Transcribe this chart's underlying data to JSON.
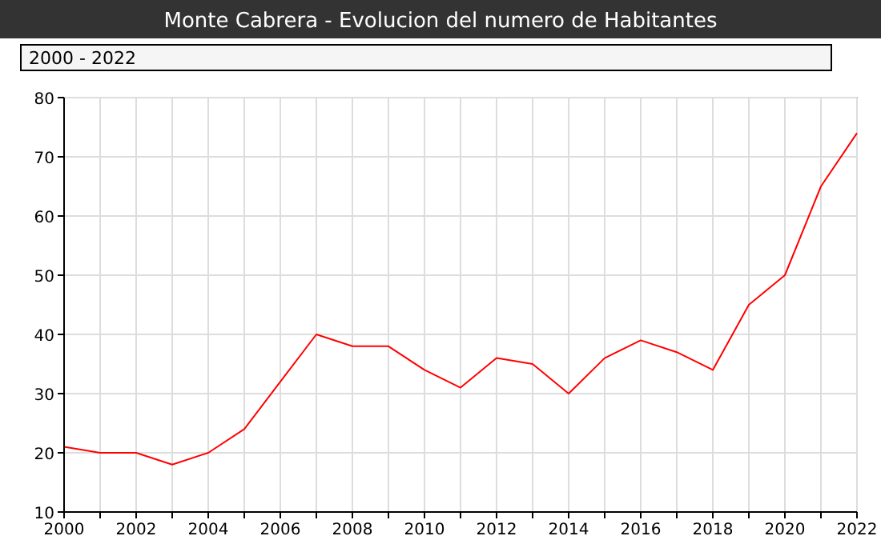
{
  "chart_data": {
    "type": "line",
    "title": "Monte Cabrera - Evolucion del numero de Habitantes",
    "annotations": [
      "2000 - 2022"
    ],
    "x": [
      2000,
      2001,
      2002,
      2003,
      2004,
      2005,
      2006,
      2007,
      2008,
      2009,
      2010,
      2011,
      2012,
      2013,
      2014,
      2015,
      2016,
      2017,
      2018,
      2019,
      2020,
      2021,
      2022
    ],
    "series": [
      {
        "color": "#ff0000",
        "values": [
          21,
          20,
          20,
          18,
          20,
          24,
          32,
          40,
          38,
          38,
          34,
          31,
          36,
          35,
          30,
          36,
          39,
          37,
          34,
          45,
          50,
          65,
          74
        ]
      }
    ],
    "xlim": [
      2000,
      2022
    ],
    "xticks": [
      2000,
      {
        "value": 2001,
        "label": null
      },
      2002,
      {
        "value": 2003,
        "label": null
      },
      2004,
      {
        "value": 2005,
        "label": null
      },
      2006,
      {
        "value": 2007,
        "label": null
      },
      2008,
      {
        "value": 2009,
        "label": null
      },
      2010,
      {
        "value": 2011,
        "label": null
      },
      2012,
      {
        "value": 2013,
        "label": null
      },
      2014,
      {
        "value": 2015,
        "label": null
      },
      2016,
      {
        "value": 2017,
        "label": null
      },
      2018,
      {
        "value": 2019,
        "label": null
      },
      2020,
      {
        "value": 2021,
        "label": null
      },
      2022
    ],
    "ylim": [
      10,
      80
    ],
    "yticks": [
      10,
      20,
      30,
      40,
      50,
      60,
      70,
      80
    ],
    "grid": true,
    "line_style": "solid"
  }
}
